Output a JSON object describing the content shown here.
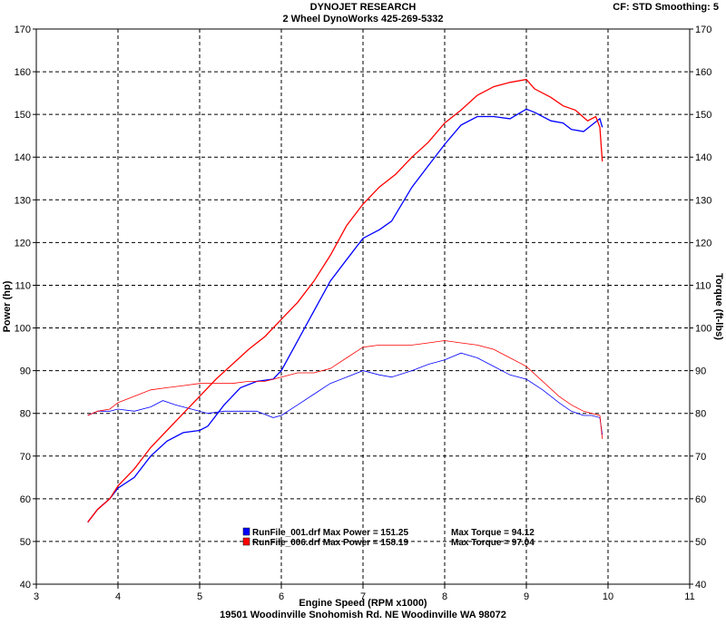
{
  "header": {
    "title": "DYNOJET RESEARCH",
    "subtitle": "2 Wheel DynoWorks 425-269-5332",
    "cf_info": "CF: STD  Smoothing: 5"
  },
  "footer": {
    "address": "19501 Woodinville Snohomish Rd. NE Woodinville WA 98072"
  },
  "chart_data": {
    "type": "line",
    "title": "DYNOJET RESEARCH",
    "xlabel": "Engine Speed (RPM x1000)",
    "ylabel_left": "Power (hp)",
    "ylabel_right": "Torque (ft-lbs)",
    "xlim": [
      3,
      11
    ],
    "ylim_left": [
      40,
      170
    ],
    "ylim_right": [
      40,
      170
    ],
    "x_ticks": [
      3,
      4,
      5,
      6,
      7,
      8,
      9,
      10,
      11
    ],
    "y_ticks": [
      40,
      50,
      60,
      70,
      80,
      90,
      100,
      110,
      120,
      130,
      140,
      150,
      160,
      170
    ],
    "grid": true,
    "legend_placement": "bottom-center",
    "series": [
      {
        "name": "RunFile_001.drf",
        "color": "#0000ff",
        "legend_label": "RunFile_001.drf Max Power = 151.25",
        "torque_label": "Max Torque = 94.12",
        "power": [
          [
            3.63,
            54.5
          ],
          [
            3.75,
            57.5
          ],
          [
            3.9,
            60
          ],
          [
            4.0,
            62.5
          ],
          [
            4.2,
            65
          ],
          [
            4.4,
            70
          ],
          [
            4.6,
            73.5
          ],
          [
            4.8,
            75.5
          ],
          [
            5.0,
            76
          ],
          [
            5.1,
            77
          ],
          [
            5.3,
            82
          ],
          [
            5.5,
            86
          ],
          [
            5.7,
            87.5
          ],
          [
            5.9,
            88
          ],
          [
            6.0,
            90
          ],
          [
            6.2,
            97
          ],
          [
            6.4,
            104
          ],
          [
            6.6,
            111
          ],
          [
            6.8,
            116
          ],
          [
            7.0,
            121
          ],
          [
            7.2,
            123
          ],
          [
            7.35,
            125
          ],
          [
            7.6,
            133
          ],
          [
            7.8,
            138
          ],
          [
            8.0,
            143
          ],
          [
            8.2,
            147.5
          ],
          [
            8.4,
            149.5
          ],
          [
            8.6,
            149.5
          ],
          [
            8.8,
            149
          ],
          [
            9.0,
            151.25
          ],
          [
            9.1,
            150.5
          ],
          [
            9.3,
            148.5
          ],
          [
            9.45,
            148
          ],
          [
            9.55,
            146.5
          ],
          [
            9.7,
            146
          ],
          [
            9.8,
            147.5
          ],
          [
            9.9,
            149
          ],
          [
            9.93,
            147
          ]
        ],
        "torque": [
          [
            3.63,
            79.5
          ],
          [
            3.75,
            80.5
          ],
          [
            3.9,
            80.5
          ],
          [
            4.0,
            81
          ],
          [
            4.2,
            80.5
          ],
          [
            4.4,
            81.5
          ],
          [
            4.55,
            83
          ],
          [
            4.7,
            82
          ],
          [
            4.9,
            81
          ],
          [
            5.1,
            80
          ],
          [
            5.3,
            80.5
          ],
          [
            5.5,
            80.5
          ],
          [
            5.7,
            80.5
          ],
          [
            5.9,
            79
          ],
          [
            6.0,
            79.5
          ],
          [
            6.2,
            82
          ],
          [
            6.4,
            84.5
          ],
          [
            6.6,
            87
          ],
          [
            6.8,
            88.5
          ],
          [
            7.0,
            90
          ],
          [
            7.2,
            89
          ],
          [
            7.35,
            88.5
          ],
          [
            7.6,
            90
          ],
          [
            7.8,
            91.5
          ],
          [
            8.0,
            92.5
          ],
          [
            8.2,
            94.12
          ],
          [
            8.4,
            93
          ],
          [
            8.6,
            91
          ],
          [
            8.8,
            89
          ],
          [
            9.0,
            88
          ],
          [
            9.2,
            85.5
          ],
          [
            9.4,
            82.5
          ],
          [
            9.55,
            80.5
          ],
          [
            9.7,
            79.5
          ],
          [
            9.8,
            79.5
          ],
          [
            9.9,
            79
          ],
          [
            9.93,
            75
          ]
        ]
      },
      {
        "name": "RunFile_006.drf",
        "color": "#ff0000",
        "legend_label": "RunFile_006.drf Max Power = 158.19",
        "torque_label": "Max Torque = 97.04",
        "power": [
          [
            3.63,
            54.5
          ],
          [
            3.75,
            57.5
          ],
          [
            3.9,
            60
          ],
          [
            4.0,
            63
          ],
          [
            4.2,
            67
          ],
          [
            4.4,
            72
          ],
          [
            4.6,
            76
          ],
          [
            4.8,
            80
          ],
          [
            5.0,
            84
          ],
          [
            5.2,
            88
          ],
          [
            5.4,
            91.5
          ],
          [
            5.6,
            95
          ],
          [
            5.8,
            98
          ],
          [
            6.0,
            102
          ],
          [
            6.2,
            106
          ],
          [
            6.4,
            111
          ],
          [
            6.6,
            117
          ],
          [
            6.8,
            124
          ],
          [
            7.0,
            129
          ],
          [
            7.2,
            133
          ],
          [
            7.4,
            136
          ],
          [
            7.6,
            140
          ],
          [
            7.8,
            143.5
          ],
          [
            8.0,
            148
          ],
          [
            8.2,
            151
          ],
          [
            8.4,
            154.5
          ],
          [
            8.6,
            156.5
          ],
          [
            8.8,
            157.5
          ],
          [
            9.0,
            158.19
          ],
          [
            9.1,
            156
          ],
          [
            9.3,
            154
          ],
          [
            9.45,
            152
          ],
          [
            9.6,
            151
          ],
          [
            9.75,
            148.5
          ],
          [
            9.85,
            149.5
          ],
          [
            9.9,
            147
          ],
          [
            9.93,
            139
          ]
        ],
        "torque": [
          [
            3.63,
            79.5
          ],
          [
            3.75,
            80.5
          ],
          [
            3.9,
            81
          ],
          [
            4.0,
            82.5
          ],
          [
            4.2,
            84
          ],
          [
            4.4,
            85.5
          ],
          [
            4.6,
            86
          ],
          [
            4.8,
            86.5
          ],
          [
            5.0,
            87
          ],
          [
            5.2,
            87
          ],
          [
            5.4,
            87
          ],
          [
            5.6,
            87.5
          ],
          [
            5.8,
            87.5
          ],
          [
            6.0,
            88.5
          ],
          [
            6.2,
            89.5
          ],
          [
            6.4,
            89.5
          ],
          [
            6.6,
            90.5
          ],
          [
            6.8,
            93
          ],
          [
            7.0,
            95.5
          ],
          [
            7.2,
            96
          ],
          [
            7.4,
            96
          ],
          [
            7.6,
            96
          ],
          [
            7.8,
            96.5
          ],
          [
            8.0,
            97.04
          ],
          [
            8.2,
            96.5
          ],
          [
            8.4,
            96
          ],
          [
            8.6,
            95
          ],
          [
            8.8,
            93
          ],
          [
            9.0,
            91
          ],
          [
            9.2,
            87.5
          ],
          [
            9.4,
            84
          ],
          [
            9.55,
            82
          ],
          [
            9.7,
            80.5
          ],
          [
            9.8,
            80
          ],
          [
            9.9,
            79.5
          ],
          [
            9.93,
            74
          ]
        ]
      }
    ]
  }
}
